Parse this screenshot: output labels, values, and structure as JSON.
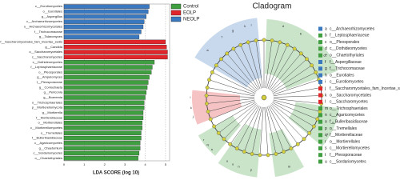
{
  "chart_data": {
    "type": "bar",
    "orientation": "horizontal",
    "x_label": "LDA SCORE (log 10)",
    "categories": [
      "c__Eurotiomycetes",
      "o__Eurotiales",
      "g__Aspergillus",
      "c__Archaeorhizomycetes",
      "o__Archaeorhizomycetales",
      "f__Trichocomaceae",
      "g__Talaromyces",
      "f__Saccharomycetales_fam_Incertae_sedis",
      "g__Candida",
      "o__Saccharomycetales",
      "c__Saccharomycetes",
      "c__Dothideomycetes",
      "f__Leptosphaeriaceae",
      "o__Pleosporales",
      "g__Ampelomyces",
      "f__Pleosporaceae",
      "g__Coniochaeta",
      "g__Periconia",
      "g__Boeremia",
      "o__Trichosphaeriales",
      "p__Mortierellomycota",
      "g__Mortierella",
      "f__Mortierellaceae",
      "o__Mortierellales",
      "c__Mortierellomycetes",
      "o__Tremellales",
      "f__Bulleribasidiaceae",
      "c__Agaricomycetes",
      "g__Chaetomium",
      "c__Sordariomycetes",
      "o__Chaetothyriales"
    ],
    "series": [
      {
        "name": "Control",
        "color": "#3f9e3f",
        "values": [
          null,
          null,
          null,
          null,
          null,
          null,
          null,
          null,
          null,
          null,
          null,
          4.45,
          4.35,
          4.3,
          4.2,
          4.15,
          4.1,
          4.05,
          4.0,
          3.95,
          3.95,
          3.9,
          3.9,
          3.85,
          3.85,
          3.8,
          3.8,
          3.75,
          3.75,
          3.7,
          3.65
        ]
      },
      {
        "name": "EOLP",
        "color": "#e0262b",
        "values": [
          null,
          null,
          null,
          null,
          null,
          null,
          null,
          5.0,
          5.05,
          5.1,
          5.1,
          null,
          null,
          null,
          null,
          null,
          null,
          null,
          null,
          null,
          null,
          null,
          null,
          null,
          null,
          null,
          null,
          null,
          null,
          null,
          null
        ]
      },
      {
        "name": "NEOLP",
        "color": "#3a78c0",
        "values": [
          4.2,
          4.15,
          4.05,
          3.95,
          3.9,
          3.8,
          3.7,
          null,
          null,
          null,
          null,
          null,
          null,
          null,
          null,
          null,
          null,
          null,
          null,
          null,
          null,
          null,
          null,
          null,
          null,
          null,
          null,
          null,
          null,
          null,
          null
        ]
      }
    ],
    "xlim": [
      0,
      5.2
    ],
    "xticks": [
      0,
      1,
      2,
      3,
      4,
      5
    ],
    "grid": true
  },
  "cladogram": {
    "title": "Cladogram",
    "legend": [
      {
        "letter": "a",
        "label": "c__Archaeorhizomycetes",
        "color": "#3a78c0"
      },
      {
        "letter": "b",
        "label": "f__Leptosphaeriaceae",
        "color": "#3f9e3f"
      },
      {
        "letter": "c",
        "label": "o__Pleosporales",
        "color": "#3f9e3f"
      },
      {
        "letter": "d",
        "label": "c__Dothideomycetes",
        "color": "#3f9e3f"
      },
      {
        "letter": "e",
        "label": "o__Chaetothyriales",
        "color": "#3f9e3f"
      },
      {
        "letter": "f",
        "label": "f__Aspergillaceae",
        "color": "#3a78c0"
      },
      {
        "letter": "g",
        "label": "f__Trichocomaceae",
        "color": "#3a78c0"
      },
      {
        "letter": "h",
        "label": "o__Eurotiales",
        "color": "#3a78c0"
      },
      {
        "letter": "i",
        "label": "c__Eurotiomycetes",
        "color": "#3a78c0"
      },
      {
        "letter": "j",
        "label": "f__Saccharomycetales_fam_Incertae_sedis",
        "color": "#e0262b"
      },
      {
        "letter": "k",
        "label": "o__Saccharomycetales",
        "color": "#e0262b"
      },
      {
        "letter": "l",
        "label": "c__Saccharomycetes",
        "color": "#e0262b"
      },
      {
        "letter": "m",
        "label": "o__Trichosphaeriales",
        "color": "#3f9e3f"
      },
      {
        "letter": "n",
        "label": "c__Agaricomycetes",
        "color": "#3f9e3f"
      },
      {
        "letter": "o",
        "label": "f__Bulleribasidiaceae",
        "color": "#3f9e3f"
      },
      {
        "letter": "p",
        "label": "o__Tremellales",
        "color": "#3f9e3f"
      },
      {
        "letter": "q",
        "label": "f__Mortierellaceae",
        "color": "#3f9e3f"
      },
      {
        "letter": "r",
        "label": "o__Mortierellales",
        "color": "#3f9e3f"
      },
      {
        "letter": "s",
        "label": "c__Mortierellomycetes",
        "color": "#3f9e3f"
      },
      {
        "letter": "t",
        "label": "f__Pleosporaceae",
        "color": "#3f9e3f"
      },
      {
        "letter": "u",
        "label": "c__Sordariomycetes",
        "color": "#3f9e3f"
      }
    ]
  }
}
